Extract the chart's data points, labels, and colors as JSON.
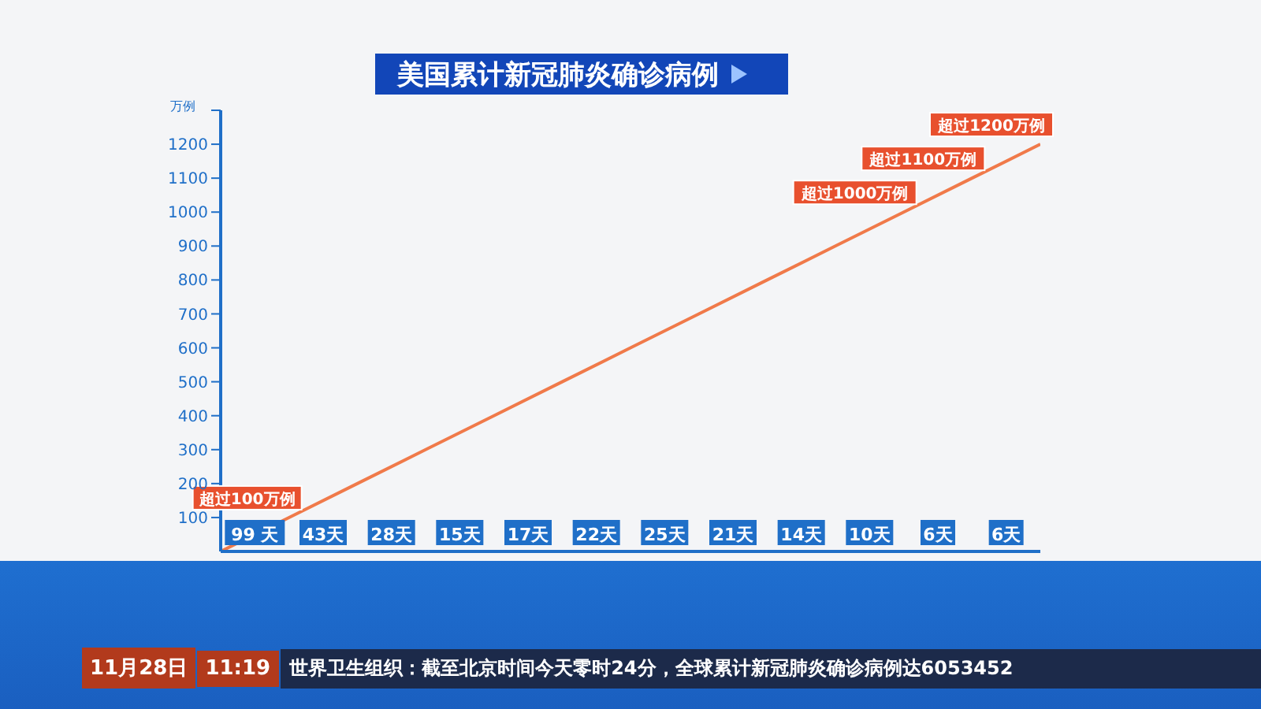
{
  "chart_data": {
    "type": "line",
    "title": "美国累计新冠肺炎确诊病例",
    "ylabel": "万例",
    "categories": [
      null,
      null,
      null,
      null,
      null,
      null,
      null,
      null,
      null,
      null,
      null,
      null,
      null
    ],
    "values": [
      0,
      100,
      200,
      300,
      400,
      500,
      600,
      700,
      800,
      900,
      1000,
      1100,
      1200
    ],
    "value_labels": [
      null,
      "超过100万例",
      null,
      null,
      null,
      null,
      null,
      null,
      null,
      null,
      "超过1000万例",
      "超过1100万例",
      "超过1200万例"
    ],
    "color": "#f07a4a",
    "ylim": [
      0,
      1300
    ],
    "yticks": [
      100,
      200,
      300,
      400,
      500,
      600,
      700,
      800,
      900,
      1000,
      1100,
      1200,
      {
        "value": 1300,
        "label": null
      }
    ],
    "annotations": [
      "99 天",
      "43天",
      "28天",
      "15天",
      "17天",
      "22天",
      "25天",
      "21天",
      "14天",
      "10天",
      "6天",
      "6天",
      "11月28日",
      "11:19",
      "世界卫生组织：截至北京时间今天零时24分，全球累计新冠肺炎确诊病例达6053452"
    ]
  }
}
